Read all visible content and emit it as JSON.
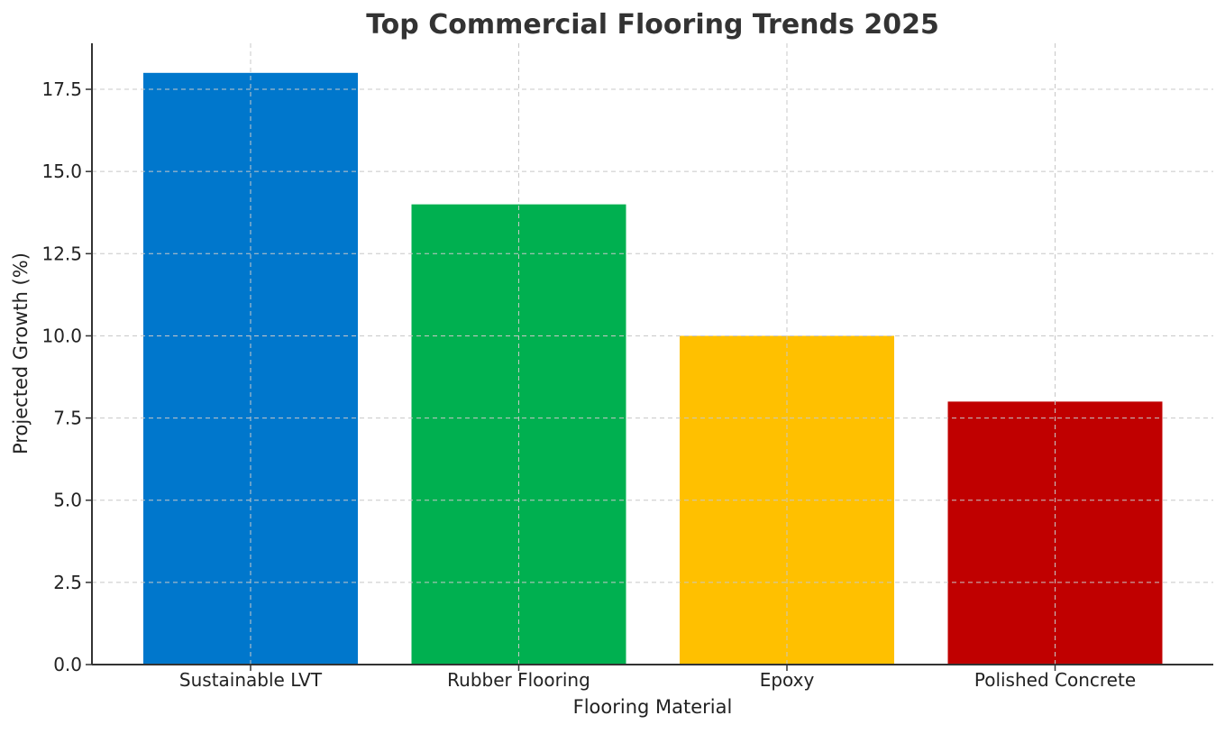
{
  "chart_data": {
    "type": "bar",
    "title": "Top Commercial Flooring Trends 2025",
    "xlabel": "Flooring Material",
    "ylabel": "Projected Growth (%)",
    "categories": [
      "Sustainable LVT",
      "Rubber Flooring",
      "Epoxy",
      "Polished Concrete"
    ],
    "values": [
      18,
      14,
      10,
      8
    ],
    "colors": [
      "#0077cc",
      "#00b050",
      "#ffc000",
      "#c00000"
    ],
    "ylim": [
      0,
      18.9
    ],
    "yticks": [
      0.0,
      2.5,
      5.0,
      7.5,
      10.0,
      12.5,
      15.0,
      17.5
    ],
    "ytick_labels": [
      "0.0",
      "2.5",
      "5.0",
      "7.5",
      "10.0",
      "12.5",
      "15.0",
      "17.5"
    ],
    "grid": true,
    "legend": "none"
  }
}
